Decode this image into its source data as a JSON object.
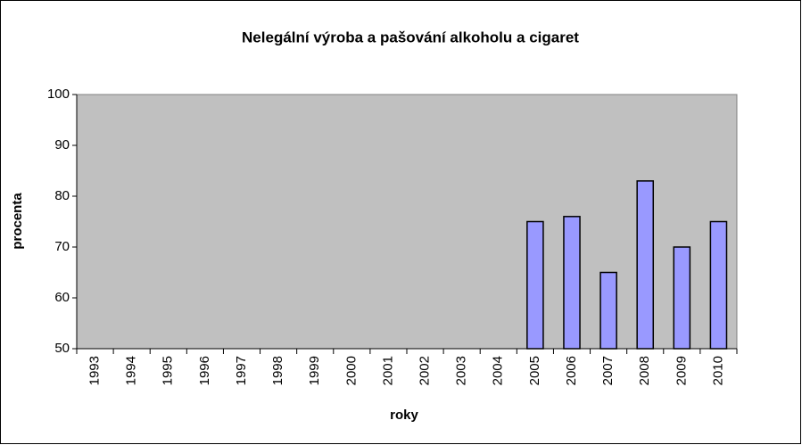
{
  "chart_data": {
    "type": "bar",
    "title": "Nelegální výroba a pašování alkoholu a cigaret",
    "x_label": "roky",
    "y_label": "procenta",
    "categories": [
      "1993",
      "1994",
      "1995",
      "1996",
      "1997",
      "1998",
      "1999",
      "2000",
      "2001",
      "2002",
      "2003",
      "2004",
      "2005",
      "2006",
      "2007",
      "2008",
      "2009",
      "2010"
    ],
    "values": [
      null,
      null,
      null,
      null,
      null,
      null,
      null,
      null,
      null,
      null,
      null,
      null,
      75,
      76,
      65,
      83,
      70,
      75
    ],
    "color": "#9999ff",
    "ylim": [
      50,
      100
    ],
    "yticks": [
      50,
      60,
      70,
      80,
      90,
      100
    ],
    "grid": false
  }
}
